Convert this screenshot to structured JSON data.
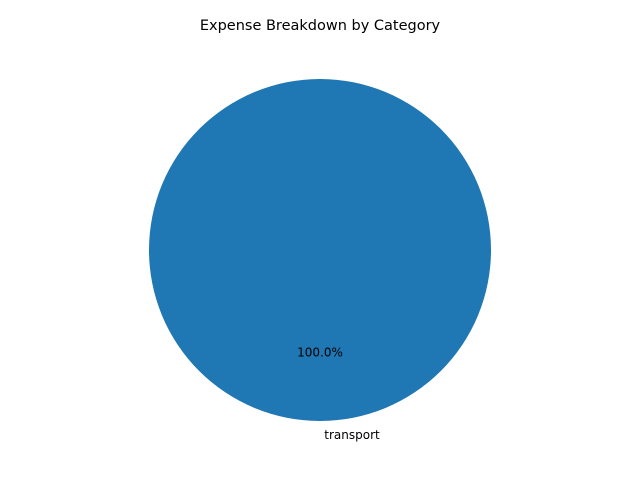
{
  "chart_data": {
    "type": "pie",
    "title": "Expense Breakdown by Category",
    "categories": [
      "transport"
    ],
    "values": [
      100
    ],
    "percent_labels": [
      "100.0%"
    ],
    "colors": [
      "#1f77b4"
    ],
    "start_angle": 90,
    "legend": "none"
  }
}
